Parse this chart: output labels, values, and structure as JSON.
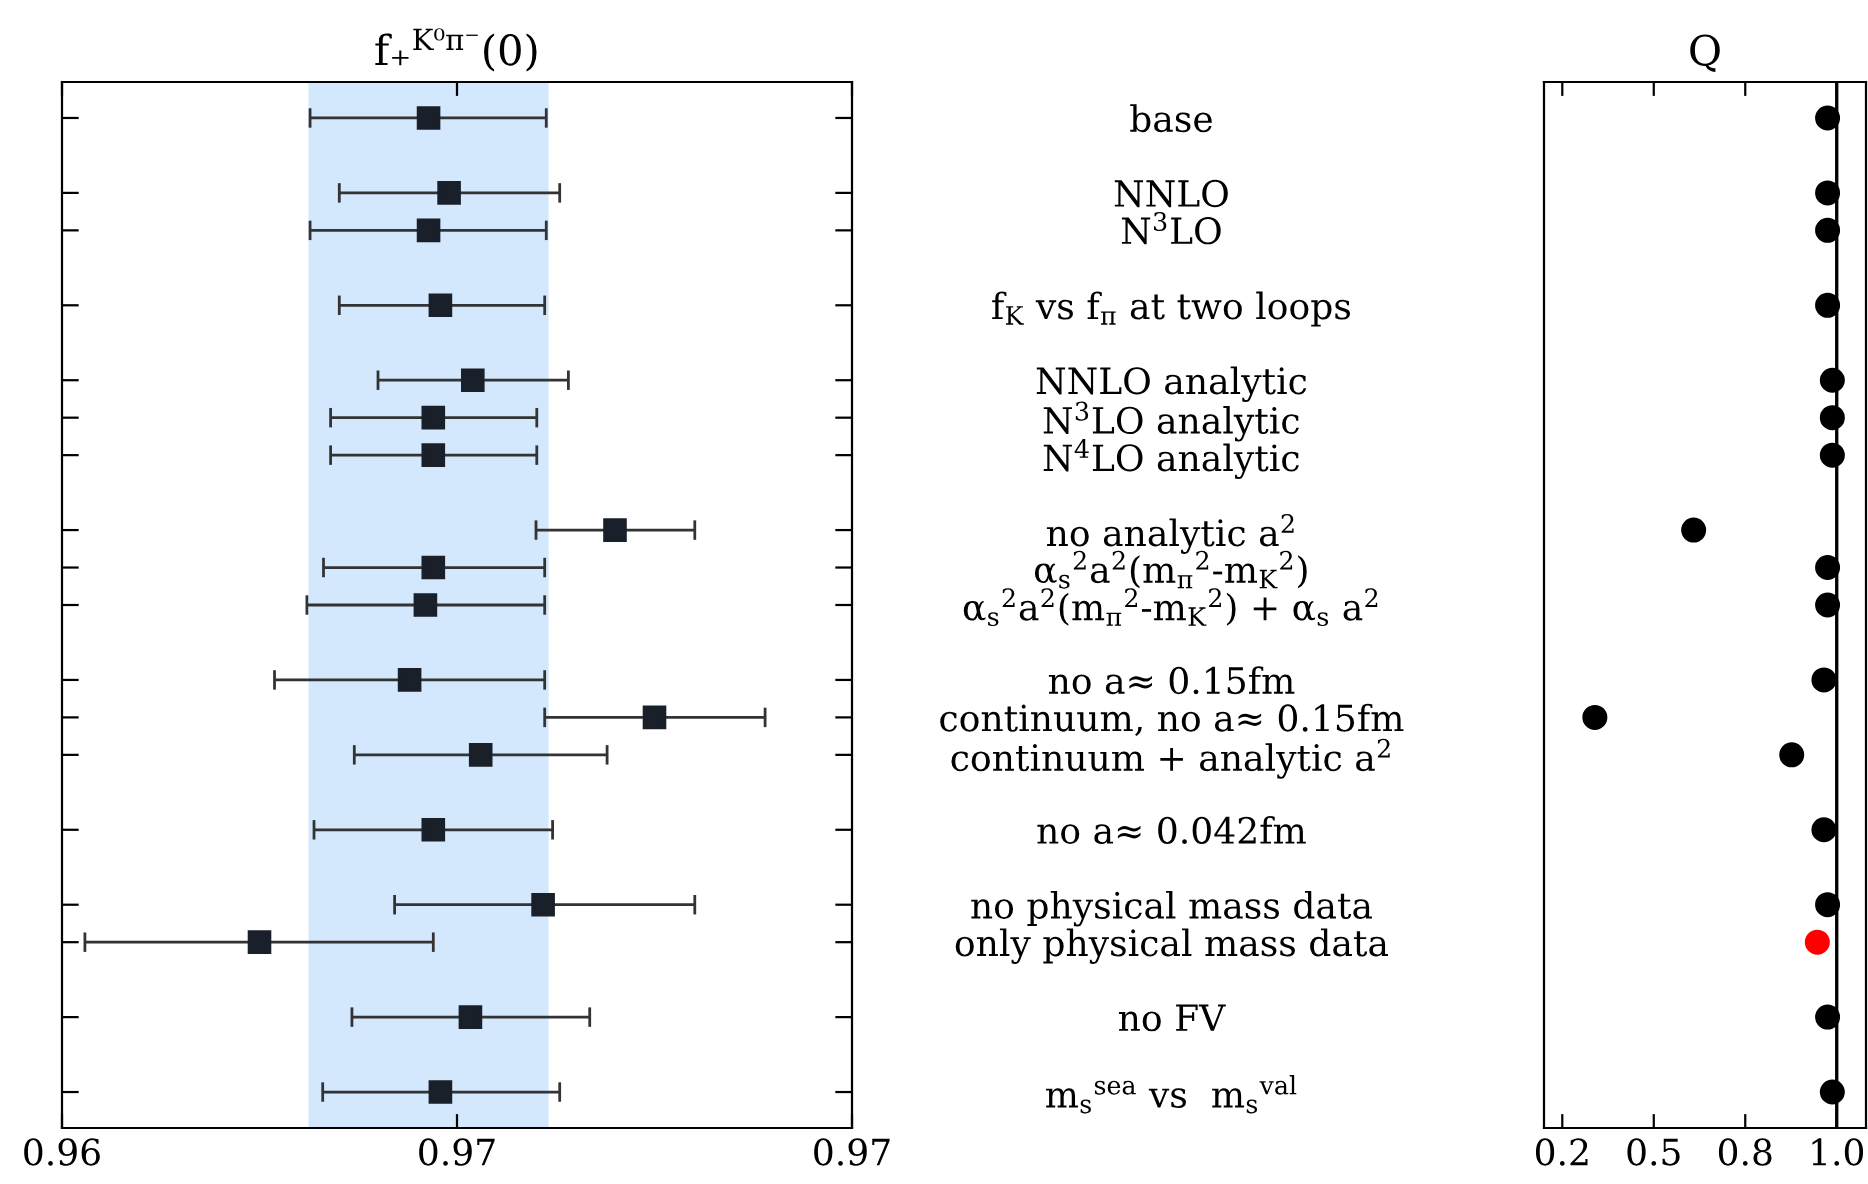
{
  "chart_data": [
    {
      "type": "scatter",
      "orientation": "horizontal",
      "title": "f₊$^{K⁰π⁻}$(0)",
      "categories": [
        "base",
        null,
        "NNLO",
        "N$^{3}$LO",
        null,
        "f$_{K}$ vs f$_{π}$ at two loops",
        null,
        "NNLO analytic",
        "N$^{3}$LO analytic",
        "N$^{4}$LO analytic",
        null,
        "no analytic a$^{2}$",
        "α$_{s}$$^{2}$a$^{2}$(m$_{π}$$^{2}$-m$_{K}$$^{2}$)",
        "α$_{s}$$^{2}$a$^{2}$(m$_{π}$$^{2}$-m$_{K}$$^{2}$) + α$_{s}$ a$^{2}$",
        null,
        "no a≈ 0.15fm",
        "continuum, no a≈ 0.15fm",
        "continuum + analytic a$^{2}$",
        null,
        "no a≈ 0.042fm",
        null,
        "no physical mass data",
        "only physical mass data",
        null,
        "no FV",
        null,
        "m$_{s}$$^{sea}$ vs  m$_{s}$$^{val}$"
      ],
      "series": [
        {
          "color": "#1a202a",
          "values": [
            0.96464,
            null,
            0.9649,
            0.96464,
            null,
            0.96479,
            null,
            0.9652,
            0.9647,
            0.9647,
            null,
            0.967,
            0.9647,
            0.9646,
            null,
            0.9644,
            0.9675,
            0.9653,
            null,
            0.9647,
            null,
            0.96609,
            0.9625,
            null,
            0.96517,
            null,
            0.96479
          ],
          "errors": [
            [
              0.96314,
              0.96613
            ],
            null,
            [
              0.96351,
              0.9663
            ],
            [
              0.96314,
              0.96613
            ],
            null,
            [
              0.96351,
              0.96611
            ],
            null,
            [
              0.964,
              0.96641
            ],
            [
              0.9634,
              0.96601
            ],
            [
              0.9634,
              0.96601
            ],
            null,
            [
              0.966,
              0.96801
            ],
            [
              0.96331,
              0.96611
            ],
            [
              0.9631,
              0.96611
            ],
            null,
            [
              0.96269,
              0.96611
            ],
            [
              0.96611,
              0.9689
            ],
            [
              0.9637,
              0.9669
            ],
            null,
            [
              0.96319,
              0.96621
            ],
            null,
            [
              0.96421,
              0.96801
            ],
            [
              0.96029,
              0.9647
            ],
            null,
            [
              0.96367,
              0.96668
            ],
            null,
            [
              0.9633,
              0.9663
            ]
          ]
        }
      ],
      "marker": "square",
      "xlim": [
        0.96,
        0.97
      ],
      "xticks": [
        {
          "value": 0.96,
          "label": "0.96"
        },
        {
          "value": 0.965,
          "label": "0.97"
        },
        {
          "value": 0.97,
          "label": "0.97"
        }
      ],
      "bands": [
        {
          "axis": "x",
          "from": 0.96312,
          "to": 0.96616,
          "color": "#d3e7fd"
        }
      ]
    },
    {
      "type": "scatter",
      "orientation": "horizontal",
      "title": "Q",
      "categories": [
        null,
        null,
        null,
        null,
        null,
        null,
        null,
        null,
        null,
        null,
        null,
        null,
        null,
        null,
        null,
        null,
        null,
        null,
        null,
        null,
        null,
        null,
        null,
        null,
        null,
        null,
        null
      ],
      "series": [
        {
          "values": [
            0.975,
            null,
            0.975,
            0.975,
            null,
            0.975,
            null,
            0.988,
            0.988,
            0.988,
            null,
            0.609,
            0.975,
            0.975,
            null,
            0.965,
            0.339,
            0.877,
            null,
            0.965,
            null,
            0.975,
            0.947,
            null,
            0.975,
            null,
            0.988
          ],
          "colors": [
            "#000000",
            null,
            "#000000",
            "#000000",
            null,
            "#000000",
            null,
            "#000000",
            "#000000",
            "#000000",
            null,
            "#000000",
            "#000000",
            "#000000",
            null,
            "#000000",
            "#000000",
            "#000000",
            null,
            "#000000",
            null,
            "#000000",
            "#ff0000",
            null,
            "#000000",
            null,
            "#000000"
          ]
        }
      ],
      "marker": "circle",
      "xlim": [
        0.2,
        1.08
      ],
      "xticks": [
        {
          "value": 0.25,
          "label": "0.2"
        },
        {
          "value": 0.5,
          "label": "0.5"
        },
        {
          "value": 0.75,
          "label": "0.8"
        },
        {
          "value": 1.0,
          "label": "1.0"
        }
      ],
      "ref_lines": [
        {
          "axis": "x",
          "value": 1.0,
          "color": "#000000"
        }
      ],
      "tick_labels": "x"
    }
  ]
}
